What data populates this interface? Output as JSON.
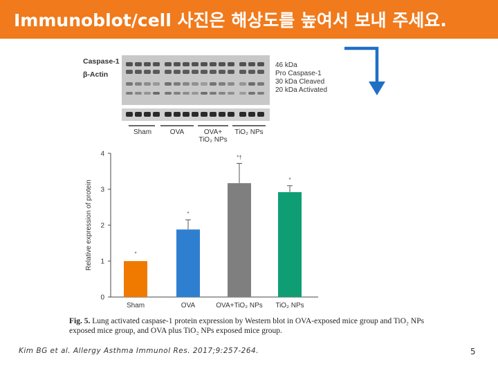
{
  "slide": {
    "title": "Immunoblot/cell 사진은 해상도를 높여서 보내 주세요.",
    "citation": "Kim BG et al. Allergy Asthma Immunol Res. 2017;9:257-264.",
    "page_number": "5"
  },
  "blot": {
    "row_labels": [
      "Caspase-1",
      "β-Actin"
    ],
    "band_labels": [
      "46 kDa",
      "Pro Caspase-1",
      "30 kDa Cleaved",
      "20 kDa Activated"
    ],
    "group_labels": [
      "Sham",
      "OVA",
      "OVA+\nTiO₂ NPs",
      "TiO₂ NPs"
    ]
  },
  "caption": {
    "figure_label": "Fig. 5.",
    "text": "Lung activated caspase-1 protein expression by Western blot in OVA-exposed mice group and TiO₂ NPs exposed mice group, and OVA plus TiO₂ NPs exposed mice group."
  },
  "colors": {
    "title_bar": "#f07a1c",
    "arrow": "#1f6fc5",
    "bars": [
      "#f07a00",
      "#2f7fd0",
      "#7f7f7f",
      "#0f9e74"
    ]
  },
  "icons": {
    "arrow": "bent-down-arrow-icon"
  },
  "chart_data": {
    "type": "bar",
    "categories": [
      "Sham",
      "OVA",
      "OVA+TiO₂ NPs",
      "TiO₂ NPs"
    ],
    "values": [
      1.0,
      1.88,
      3.17,
      2.92
    ],
    "errors": [
      0,
      0.27,
      0.55,
      0.18
    ],
    "annotations": [
      "*",
      "*",
      "*†",
      "*"
    ],
    "ylabel": "Relative expression of protein",
    "ylim": [
      0,
      4
    ],
    "yticks": [
      "0",
      "1",
      "2",
      "3",
      "4"
    ],
    "grid": false,
    "legend": "none"
  }
}
